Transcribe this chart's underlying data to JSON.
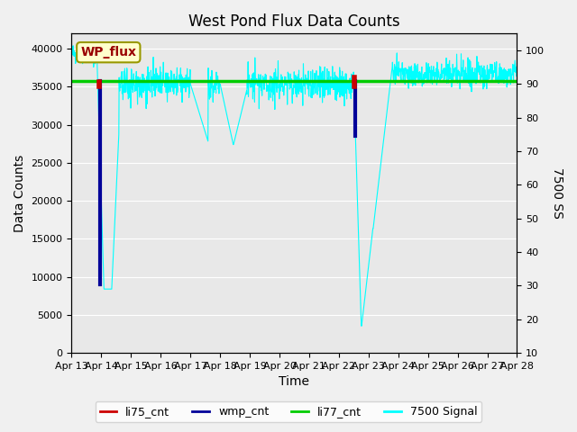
{
  "title": "West Pond Flux Data Counts",
  "xlabel": "Time",
  "ylabel_left": "Data Counts",
  "ylabel_right": "7500 SS",
  "ylim_left": [
    0,
    42000
  ],
  "ylim_right": [
    10,
    105
  ],
  "x_tick_labels": [
    "Apr 13",
    "Apr 14",
    "Apr 15",
    "Apr 16",
    "Apr 17",
    "Apr 18",
    "Apr 19",
    "Apr 20",
    "Apr 21",
    "Apr 22",
    "Apr 23",
    "Apr 24",
    "Apr 25",
    "Apr 26",
    "Apr 27",
    "Apr 28"
  ],
  "plot_bg_color": "#e8e8e8",
  "fig_bg_color": "#f0f0f0",
  "annotation_box_text": "WP_flux",
  "annotation_box_facecolor": "#ffffcc",
  "annotation_box_edgecolor": "#999900",
  "annotation_box_textcolor": "#990000",
  "li77_cnt_value": 35800,
  "li77_cnt_color": "#00cc00",
  "li75_cnt_color": "#cc0000",
  "wmp_cnt_color": "#000099",
  "signal_7500_color": "#00ffff",
  "grid_color": "#ffffff",
  "figsize": [
    6.4,
    4.8
  ],
  "dpi": 100
}
